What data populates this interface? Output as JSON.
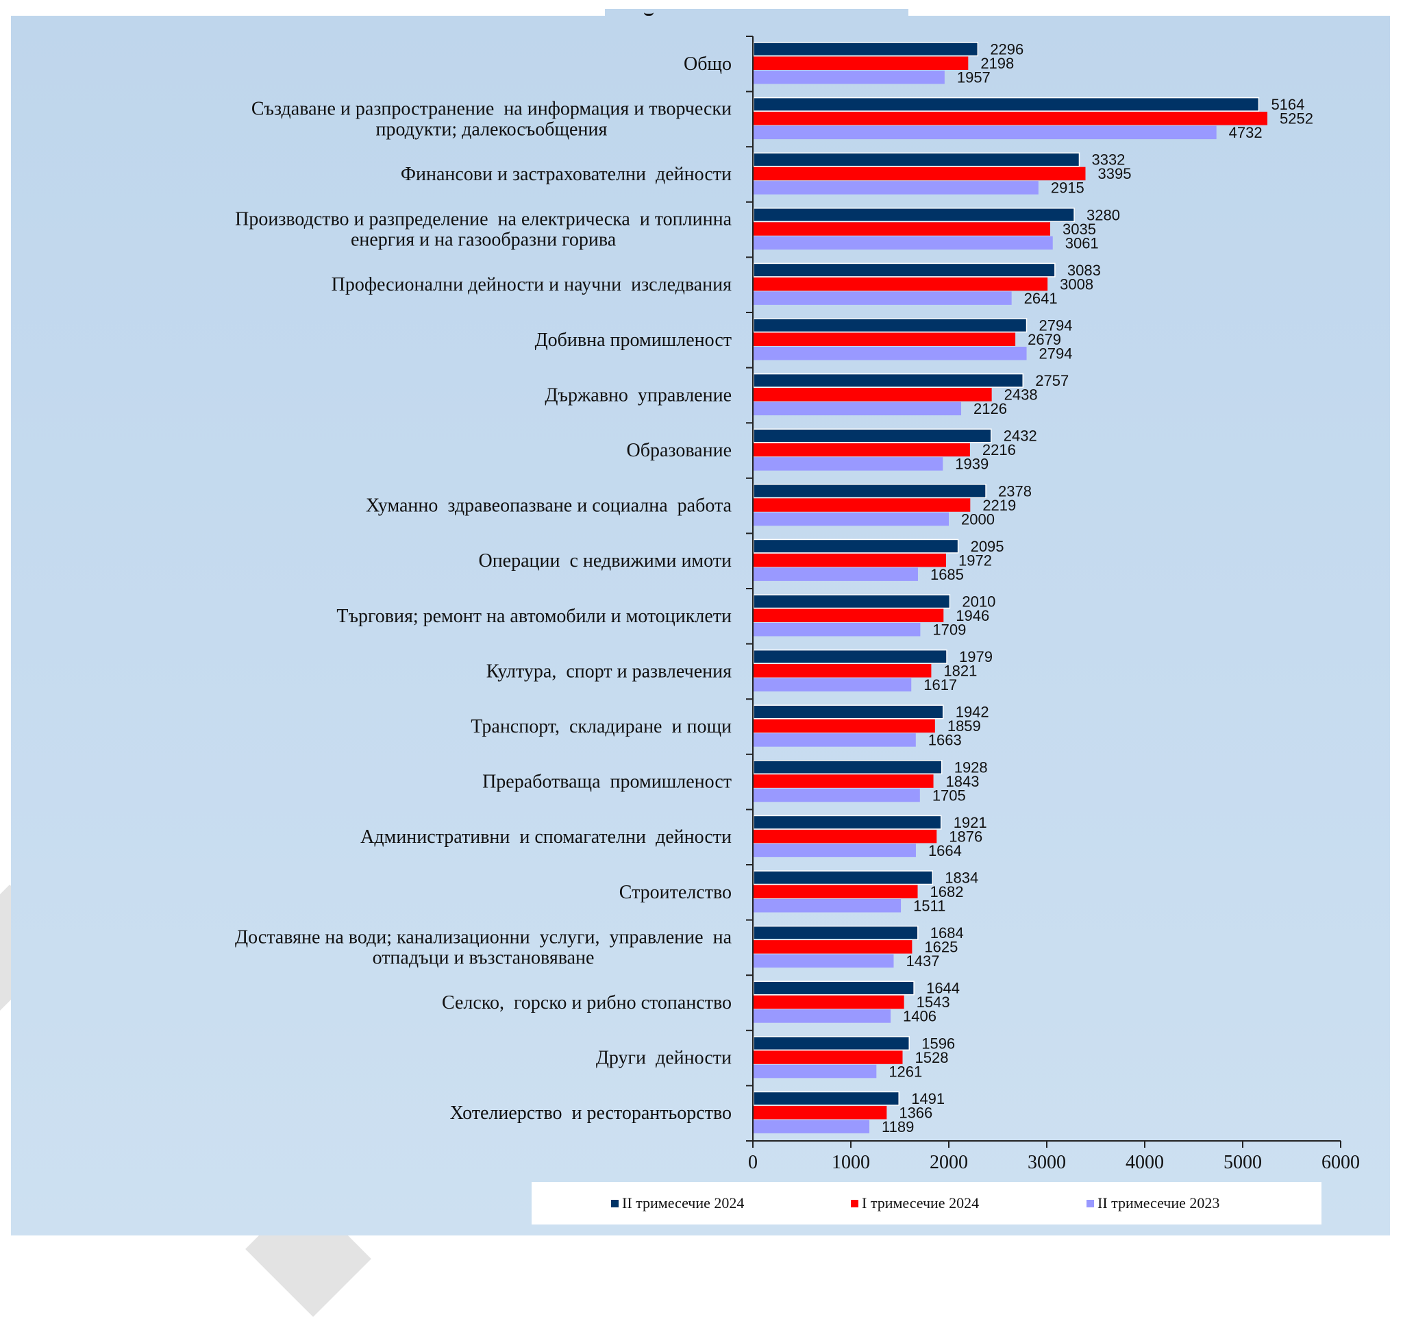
{
  "chart_data": {
    "type": "bar",
    "orientation": "horizontal",
    "title": "",
    "xlabel": "",
    "ylabel": "",
    "xlim": [
      0,
      6000
    ],
    "x_ticks": [
      "0",
      "1000",
      "2000",
      "3000",
      "4000",
      "5000",
      "6000"
    ],
    "grid": false,
    "legend_position": "bottom",
    "categories": [
      [
        "Общо"
      ],
      [
        "Създаване и разпространение  на информация и творчески",
        "продукти; далекосъобщения"
      ],
      [
        "Финансови и застрахователни  дейности"
      ],
      [
        "Производство и разпределение  на електрическа  и топлинна",
        "енергия и на газообразни горива"
      ],
      [
        "Професионални дейности и научни  изследвания"
      ],
      [
        "Добивна промишленост"
      ],
      [
        "Държавно  управление"
      ],
      [
        "Образование"
      ],
      [
        "Хуманно  здравеопазване и социална  работа"
      ],
      [
        "Операции  с недвижими имоти"
      ],
      [
        "Търговия; ремонт на автомобили и мотоциклети"
      ],
      [
        "Култура,  спорт и развлечения"
      ],
      [
        "Транспорт,  складиране  и пощи"
      ],
      [
        "Преработваща  промишленост"
      ],
      [
        "Административни  и спомагателни  дейности"
      ],
      [
        "Строителство"
      ],
      [
        "Доставяне на води; канализационни  услуги,  управление  на",
        "отпадъци и възстановяване"
      ],
      [
        "Селско,  горско и рибно стопанство"
      ],
      [
        "Други  дейности"
      ],
      [
        "Хотелиерство  и ресторантьорство"
      ]
    ],
    "series": [
      {
        "name": "II тримесечие 2024",
        "color": "#003366",
        "values": [
          2296,
          5164,
          3332,
          3280,
          3083,
          2794,
          2757,
          2432,
          2378,
          2095,
          2010,
          1979,
          1942,
          1928,
          1921,
          1834,
          1684,
          1644,
          1596,
          1491
        ]
      },
      {
        "name": "I тримесечие 2024",
        "color": "#ff0000",
        "values": [
          2198,
          5252,
          3395,
          3035,
          3008,
          2679,
          2438,
          2216,
          2219,
          1972,
          1946,
          1821,
          1859,
          1843,
          1876,
          1682,
          1625,
          1543,
          1528,
          1366
        ]
      },
      {
        "name": "II тримесечие 2023",
        "color": "#9999ff",
        "values": [
          1957,
          4732,
          2915,
          3061,
          2641,
          2794,
          2126,
          1939,
          2000,
          1685,
          1709,
          1617,
          1663,
          1705,
          1664,
          1511,
          1437,
          1406,
          1261,
          1189
        ]
      }
    ]
  },
  "colors": {
    "panel_background": "#c4d9ee",
    "legend_background": "#ffffff",
    "axis": "#222222"
  }
}
